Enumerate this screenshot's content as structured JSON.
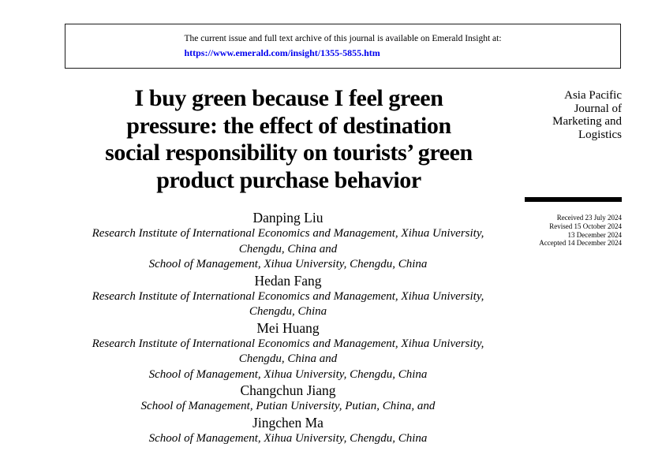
{
  "archive_notice": {
    "line1": "The current issue and full text archive of this journal is available on Emerald Insight at:",
    "url": "https://www.emerald.com/insight/1355-5855.htm",
    "link_color": "#0000EE"
  },
  "article": {
    "title": "I buy green because I feel green\npressure: the effect of destination\nsocial responsibility on tourists’ green\nproduct purchase behavior"
  },
  "journal": {
    "name": "Asia Pacific\nJournal of\nMarketing and\nLogistics"
  },
  "history": {
    "dates": "Received 23 July 2024\nRevised 15 October 2024\n13 December 2024\nAccepted 14 December 2024"
  },
  "authors": [
    {
      "name": "Danping Liu",
      "affiliation": "Research Institute of International Economics and Management, Xihua University,\nChengdu, China and\nSchool of Management, Xihua University, Chengdu, China"
    },
    {
      "name": "Hedan Fang",
      "affiliation": "Research Institute of International Economics and Management, Xihua University,\nChengdu, China"
    },
    {
      "name": "Mei Huang",
      "affiliation": "Research Institute of International Economics and Management, Xihua University,\nChengdu, China and\nSchool of Management, Xihua University, Chengdu, China"
    },
    {
      "name": "Changchun Jiang",
      "affiliation": "School of Management, Putian University, Putian, China, and"
    },
    {
      "name": "Jingchen Ma",
      "affiliation": "School of Management, Xihua University, Chengdu, China"
    }
  ]
}
